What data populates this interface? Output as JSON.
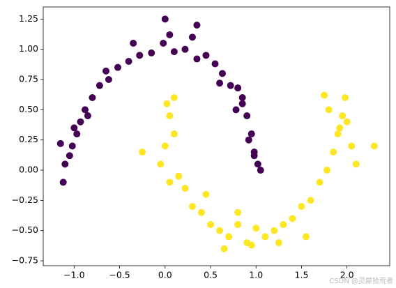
{
  "chart_data": {
    "type": "scatter",
    "series": [
      {
        "color": "#440154",
        "x": [
          1.02,
          0.95,
          0.98,
          0.9,
          0.85,
          0.8,
          0.72,
          0.63,
          0.55,
          0.45,
          0.35,
          0.22,
          0.1,
          -0.02,
          -0.15,
          -0.28,
          -0.4,
          -0.52,
          -0.62,
          -0.72,
          -0.8,
          -0.88,
          -0.93,
          -0.97,
          -1.02,
          -1.05,
          -1.1,
          -1.15,
          0.92,
          0.78,
          0.6,
          0.3,
          0.05,
          -0.35,
          -0.65,
          -0.85,
          -1.0,
          0.0,
          0.35,
          0.85,
          -1.12,
          1.05,
          0.98
        ],
        "values": [
          0.05,
          0.3,
          0.15,
          0.45,
          0.55,
          0.68,
          0.7,
          0.8,
          0.88,
          0.95,
          0.92,
          1.0,
          0.98,
          1.05,
          0.97,
          0.95,
          0.9,
          0.85,
          0.75,
          0.7,
          0.6,
          0.5,
          0.4,
          0.3,
          0.2,
          0.12,
          0.05,
          0.22,
          0.25,
          0.5,
          0.72,
          1.1,
          1.12,
          1.05,
          0.82,
          0.45,
          0.35,
          1.25,
          1.2,
          0.6,
          -0.1,
          0.0,
          0.12
        ]
      },
      {
        "color": "#fde725",
        "x": [
          0.0,
          -0.05,
          0.05,
          0.1,
          0.15,
          0.22,
          0.3,
          0.4,
          0.5,
          0.6,
          0.7,
          0.8,
          0.9,
          1.0,
          1.1,
          1.2,
          1.3,
          1.4,
          1.5,
          1.6,
          1.7,
          1.78,
          1.85,
          1.9,
          1.95,
          2.0,
          2.05,
          1.98,
          2.3,
          1.75,
          0.02,
          -0.25,
          0.45,
          0.65,
          0.95,
          1.25,
          1.55,
          1.92,
          0.1,
          0.8,
          1.8,
          2.1,
          0.05
        ],
        "values": [
          0.2,
          0.05,
          0.45,
          0.3,
          -0.05,
          -0.15,
          -0.3,
          -0.35,
          -0.45,
          -0.5,
          -0.55,
          -0.45,
          -0.6,
          -0.48,
          -0.55,
          -0.5,
          -0.45,
          -0.4,
          -0.3,
          -0.25,
          -0.1,
          0.0,
          0.15,
          0.3,
          0.45,
          0.4,
          0.2,
          0.6,
          0.2,
          0.62,
          0.55,
          0.15,
          -0.2,
          -0.65,
          -0.62,
          -0.6,
          -0.55,
          0.35,
          0.6,
          -0.35,
          0.5,
          0.05,
          -0.1
        ]
      }
    ],
    "xlim": [
      -1.34,
      2.47
    ],
    "ylim": [
      -0.79,
      1.35
    ],
    "xticks": [
      {
        "value": -1,
        "label": "−1.0"
      },
      {
        "value": -0.5,
        "label": "−0.5"
      },
      {
        "value": 0,
        "label": "0.0"
      },
      0.5,
      {
        "value": 1,
        "label": "1.0"
      },
      1.5,
      {
        "value": 2,
        "label": "2.0"
      }
    ],
    "yticks": [
      1.25,
      {
        "value": 1,
        "label": "1.00"
      },
      0.75,
      {
        "value": 0.5,
        "label": "0.50"
      },
      0.25,
      {
        "value": 0,
        "label": "0.00"
      },
      {
        "value": -0.25,
        "label": "−0.25"
      },
      {
        "value": -0.5,
        "label": "−0.50"
      },
      {
        "value": -0.75,
        "label": "−0.75"
      }
    ],
    "watermark": "CSDN @灵犀拾荒者"
  }
}
